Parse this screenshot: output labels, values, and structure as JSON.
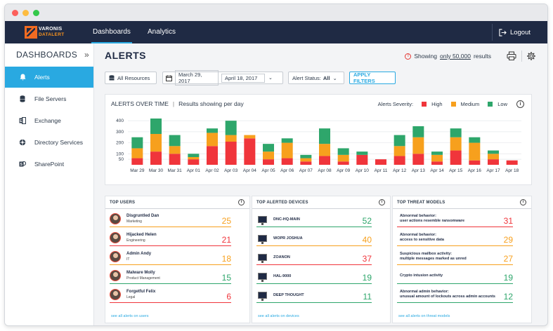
{
  "window": {
    "controls": [
      "close",
      "minimize",
      "zoom"
    ]
  },
  "brand": {
    "line1": "VARONIS",
    "line2": "DATALERT"
  },
  "nav": {
    "items": [
      {
        "label": "Dashboards",
        "active": true
      },
      {
        "label": "Analytics",
        "active": false
      }
    ],
    "logout_label": "Logout"
  },
  "sidebar": {
    "title": "DASHBOARDS",
    "items": [
      {
        "label": "Alerts",
        "icon": "bell-icon",
        "active": true
      },
      {
        "label": "File Servers",
        "icon": "database-icon",
        "active": false
      },
      {
        "label": "Exchange",
        "icon": "exchange-icon",
        "active": false
      },
      {
        "label": "Directory Services",
        "icon": "directory-icon",
        "active": false
      },
      {
        "label": "SharePoint",
        "icon": "sharepoint-icon",
        "active": false
      }
    ]
  },
  "header": {
    "title": "ALERTS",
    "results_prefix": "Showing ",
    "results_count": "only 50,000",
    "results_suffix": " results"
  },
  "filters": {
    "resources": "All Resources",
    "date_from": "March 29, 2017",
    "date_to": "April 18, 2017",
    "status_label": "Alert Status:",
    "status_value": "All",
    "apply_label": "APPLY FILTERS"
  },
  "chart_header": {
    "title": "ALERTS OVER TIME",
    "subtitle": "Results showing per day",
    "severity_label": "Alerts Severity:"
  },
  "colors": {
    "high": "#f0353b",
    "medium": "#f7a01d",
    "low": "#2ea66b",
    "accent": "#29a9e1",
    "nav": "#1f2a44"
  },
  "chart_data": {
    "type": "bar",
    "stacked": true,
    "categories": [
      "Mar 29",
      "Mar 30",
      "Mar 31",
      "Apr 01",
      "Apr 02",
      "Apr 03",
      "Apr 04",
      "Apr 05",
      "Apr 06",
      "Apr 07",
      "Apr 08",
      "Apr 09",
      "Apr 10",
      "Apr 11",
      "Apr 12",
      "Apr 13",
      "Apr 14",
      "Apr 15",
      "Apr 16",
      "Apr 17",
      "Apr 18"
    ],
    "series": [
      {
        "name": "High",
        "values": [
          60,
          120,
          100,
          50,
          170,
          210,
          240,
          50,
          60,
          30,
          80,
          30,
          90,
          50,
          80,
          100,
          30,
          130,
          40,
          50,
          40
        ]
      },
      {
        "name": "Medium",
        "values": [
          90,
          160,
          70,
          20,
          120,
          60,
          30,
          70,
          140,
          30,
          110,
          60,
          0,
          0,
          90,
          150,
          60,
          120,
          160,
          50,
          0
        ]
      },
      {
        "name": "Low",
        "values": [
          100,
          140,
          100,
          30,
          40,
          130,
          0,
          70,
          40,
          30,
          140,
          60,
          30,
          0,
          100,
          100,
          30,
          80,
          50,
          30,
          0
        ]
      }
    ],
    "ylim": [
      0,
      420
    ],
    "yticks": [
      50,
      100,
      200,
      300,
      400
    ],
    "legend_position": "top-right"
  },
  "top_users": {
    "title": "TOP USERS",
    "rows": [
      {
        "name": "Disgruntled Dan",
        "dept": "Marketing",
        "count": "25",
        "color": "#f7a01d"
      },
      {
        "name": "Hijacked Helen",
        "dept": "Engineering",
        "count": "21",
        "color": "#f0353b"
      },
      {
        "name": "Admin Andy",
        "dept": "IT",
        "count": "18",
        "color": "#f7a01d"
      },
      {
        "name": "Malware Molly",
        "dept": "Product Management",
        "count": "15",
        "color": "#2ea66b"
      },
      {
        "name": "Forgetful Felix",
        "dept": "Legal",
        "count": "6",
        "color": "#f0353b"
      }
    ],
    "see_all": "see all alerts on users"
  },
  "top_devices": {
    "title": "TOP ALERTED DEVICES",
    "rows": [
      {
        "name": "DNC-HQ-MAIN",
        "count": "52",
        "color": "#2ea66b"
      },
      {
        "name": "WOPR JOSHUA",
        "count": "40",
        "color": "#f7a01d"
      },
      {
        "name": "ZOANON",
        "count": "37",
        "color": "#f0353b"
      },
      {
        "name": "HAL-9000",
        "count": "19",
        "color": "#2ea66b"
      },
      {
        "name": "DEEP THOUGHT",
        "count": "11",
        "color": "#2ea66b"
      }
    ],
    "see_all": "see all alerts on devices"
  },
  "top_threats": {
    "title": "TOP THREAT MODELS",
    "rows": [
      {
        "line1": "Abnormal behavior:",
        "line2": "user actions resemble ransomware",
        "count": "31",
        "color": "#f0353b"
      },
      {
        "line1": "Abnormal behavior:",
        "line2": "access to sensitive data",
        "count": "29",
        "color": "#f7a01d"
      },
      {
        "line1": "Suspicious mailbox activity:",
        "line2": "multiple messages marked as unred",
        "count": "27",
        "color": "#f7a01d"
      },
      {
        "line1": "Crypto intusion activity",
        "line2": "",
        "count": "19",
        "color": "#2ea66b"
      },
      {
        "line1": "Abnormal admin behavior:",
        "line2": "unusual amount of lockouts across admin accounts",
        "count": "12",
        "color": "#2ea66b"
      }
    ],
    "see_all": "see all alerts on threat models"
  }
}
